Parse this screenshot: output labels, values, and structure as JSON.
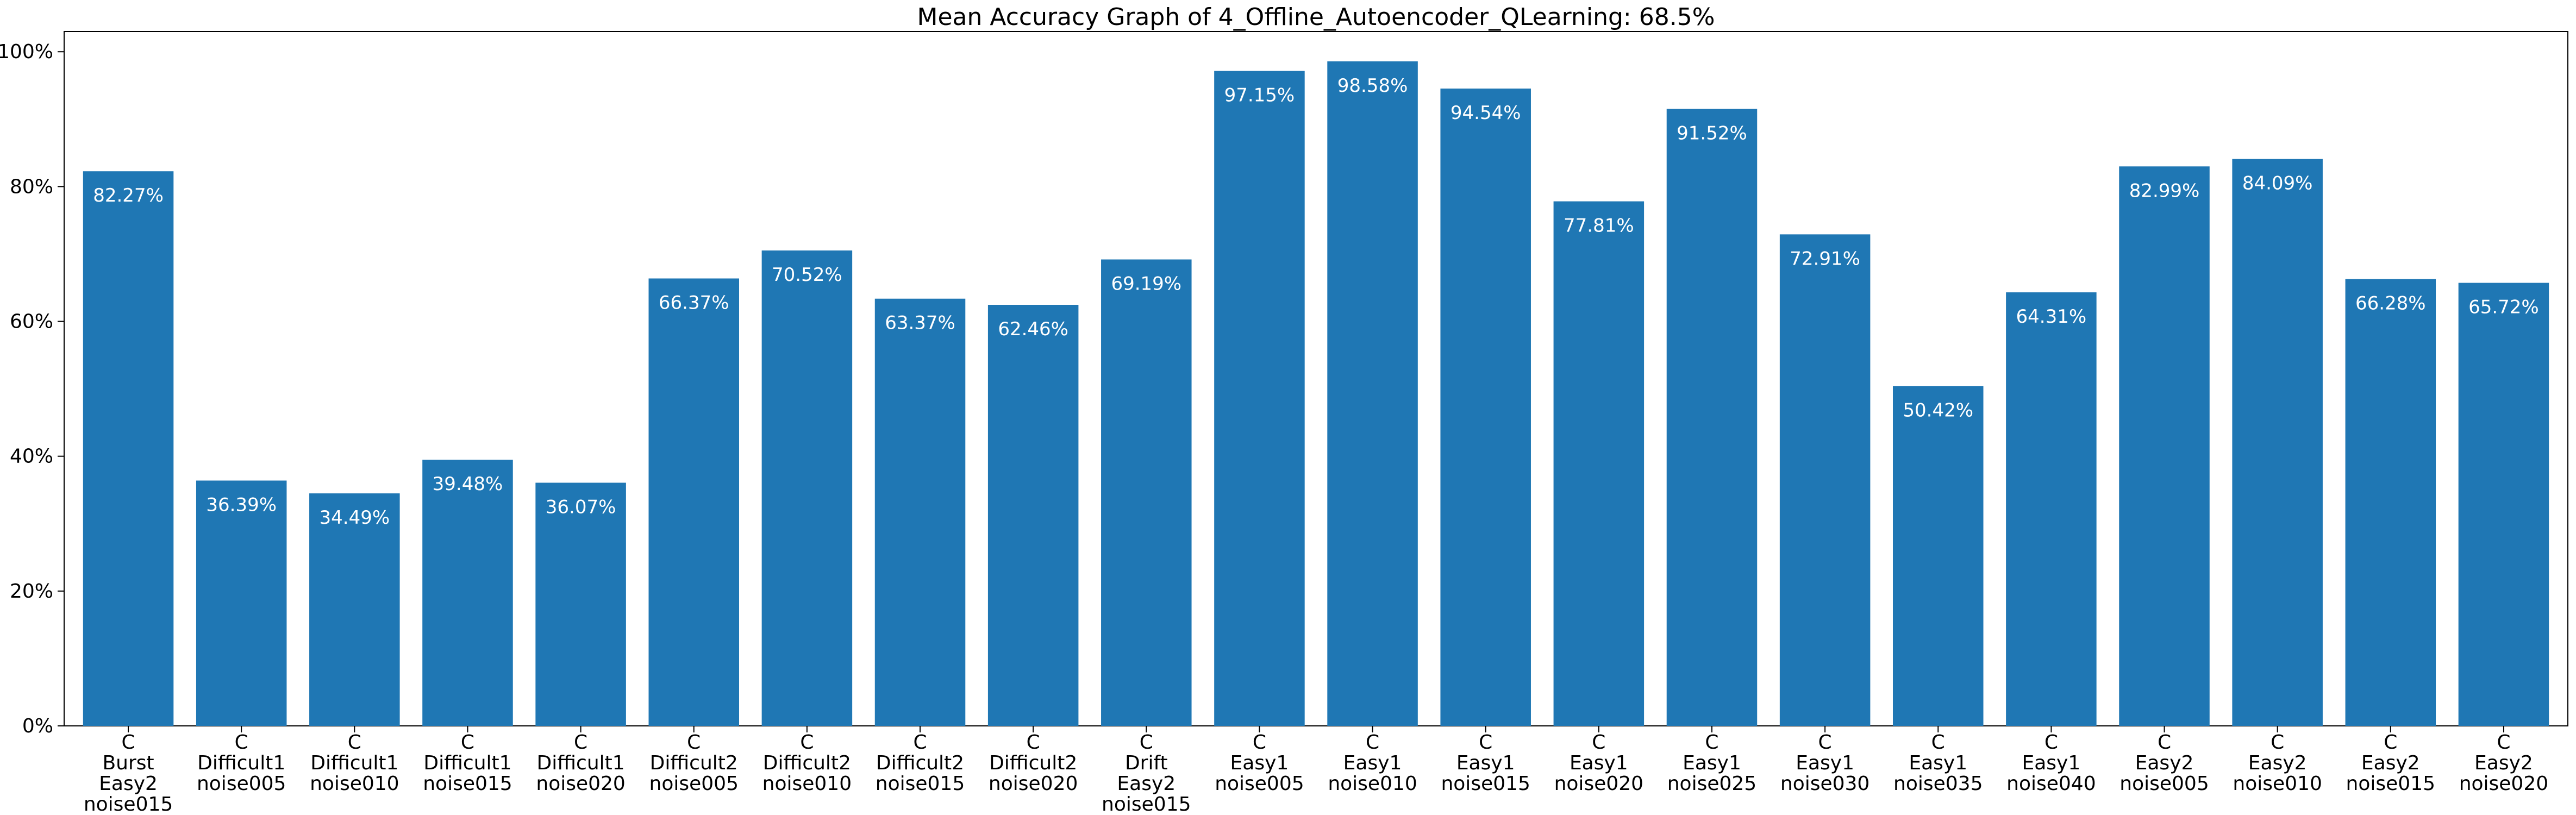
{
  "chart_data": {
    "type": "bar",
    "title": "Mean Accuracy Graph of 4_Offline_Autoencoder_QLearning: 68.5%",
    "xlabel": "",
    "ylabel": "",
    "ylim": [
      0,
      103
    ],
    "yticks": [
      0,
      20,
      40,
      60,
      80,
      100
    ],
    "ytick_labels": [
      "0%",
      "20%",
      "40%",
      "60%",
      "80%",
      "100%"
    ],
    "categories": [
      [
        "C",
        "Burst",
        "Easy2",
        "noise015"
      ],
      [
        "C",
        "Difficult1",
        "noise005"
      ],
      [
        "C",
        "Difficult1",
        "noise010"
      ],
      [
        "C",
        "Difficult1",
        "noise015"
      ],
      [
        "C",
        "Difficult1",
        "noise020"
      ],
      [
        "C",
        "Difficult2",
        "noise005"
      ],
      [
        "C",
        "Difficult2",
        "noise010"
      ],
      [
        "C",
        "Difficult2",
        "noise015"
      ],
      [
        "C",
        "Difficult2",
        "noise020"
      ],
      [
        "C",
        "Drift",
        "Easy2",
        "noise015"
      ],
      [
        "C",
        "Easy1",
        "noise005"
      ],
      [
        "C",
        "Easy1",
        "noise010"
      ],
      [
        "C",
        "Easy1",
        "noise015"
      ],
      [
        "C",
        "Easy1",
        "noise020"
      ],
      [
        "C",
        "Easy1",
        "noise025"
      ],
      [
        "C",
        "Easy1",
        "noise030"
      ],
      [
        "C",
        "Easy1",
        "noise035"
      ],
      [
        "C",
        "Easy1",
        "noise040"
      ],
      [
        "C",
        "Easy2",
        "noise005"
      ],
      [
        "C",
        "Easy2",
        "noise010"
      ],
      [
        "C",
        "Easy2",
        "noise015"
      ],
      [
        "C",
        "Easy2",
        "noise020"
      ]
    ],
    "values": [
      82.27,
      36.39,
      34.49,
      39.48,
      36.07,
      66.37,
      70.52,
      63.37,
      62.46,
      69.19,
      97.15,
      98.58,
      94.54,
      77.81,
      91.52,
      72.91,
      50.42,
      64.31,
      82.99,
      84.09,
      66.28,
      65.72
    ],
    "value_labels": [
      "82.27%",
      "36.39%",
      "34.49%",
      "39.48%",
      "36.07%",
      "66.37%",
      "70.52%",
      "63.37%",
      "62.46%",
      "69.19%",
      "97.15%",
      "98.58%",
      "94.54%",
      "77.81%",
      "91.52%",
      "72.91%",
      "50.42%",
      "64.31%",
      "82.99%",
      "84.09%",
      "66.28%",
      "65.72%"
    ],
    "bar_color": "#1f77b4",
    "label_color": "#ffffff",
    "grid": false,
    "legend": "none"
  }
}
